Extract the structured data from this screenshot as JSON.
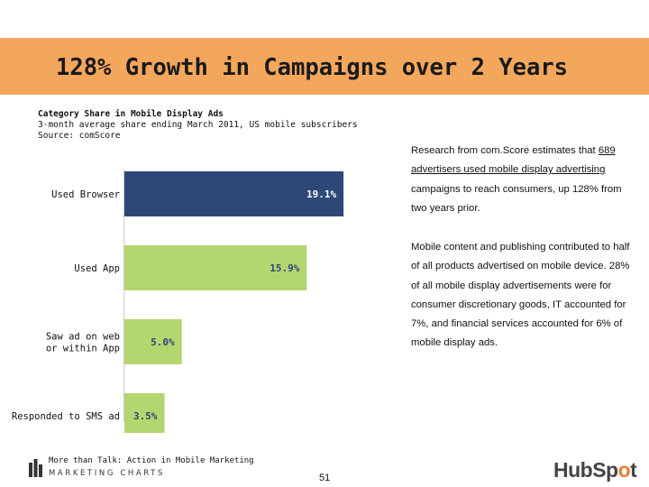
{
  "title": "128% Growth in Campaigns over 2 Years",
  "chart_data": {
    "type": "bar",
    "orientation": "horizontal",
    "title": "Category Share in Mobile Display Ads",
    "subtitle": "3-month average share ending March 2011, US mobile subscribers",
    "source": "Source: comScore",
    "categories": [
      "Used Browser",
      "Used App",
      "Saw ad on web or within App",
      "Responded to SMS ad"
    ],
    "category_lines": [
      [
        "Used Browser"
      ],
      [
        "Used App"
      ],
      [
        "Saw ad on web",
        "or within App"
      ],
      [
        "Responded to SMS ad"
      ]
    ],
    "values": [
      19.1,
      15.9,
      5.0,
      3.5
    ],
    "labels": [
      "19.1%",
      "15.9%",
      "5.0%",
      "3.5%"
    ],
    "colors": [
      "#2d4877",
      "#b4d66f",
      "#b4d66f",
      "#b4d66f"
    ],
    "label_colors": [
      "#ffffff",
      "#2d4877",
      "#2d4877",
      "#2d4877"
    ],
    "xlim": [
      0,
      22
    ],
    "grid": false,
    "legend": "none"
  },
  "side": {
    "p1_pre": "Research from com.Score estimates that ",
    "p1_link": "689 advertisers used mobile display advertising",
    "p1_post": " campaigns to reach consumers, up 128% from two years prior.",
    "p2": "Mobile content and publishing contributed to half of all products advertised on mobile device. 28% of all mobile display advertisements were for consumer discretionary goods, IT accounted for 7%, and financial services accounted for 6% of mobile display ads."
  },
  "footer": {
    "subtitle": "More than Talk: Action in Mobile Marketing",
    "brand": "MARKETING CHARTS",
    "page": "51",
    "logo_pre": "HubSp",
    "logo_o": "o",
    "logo_post": "t"
  }
}
